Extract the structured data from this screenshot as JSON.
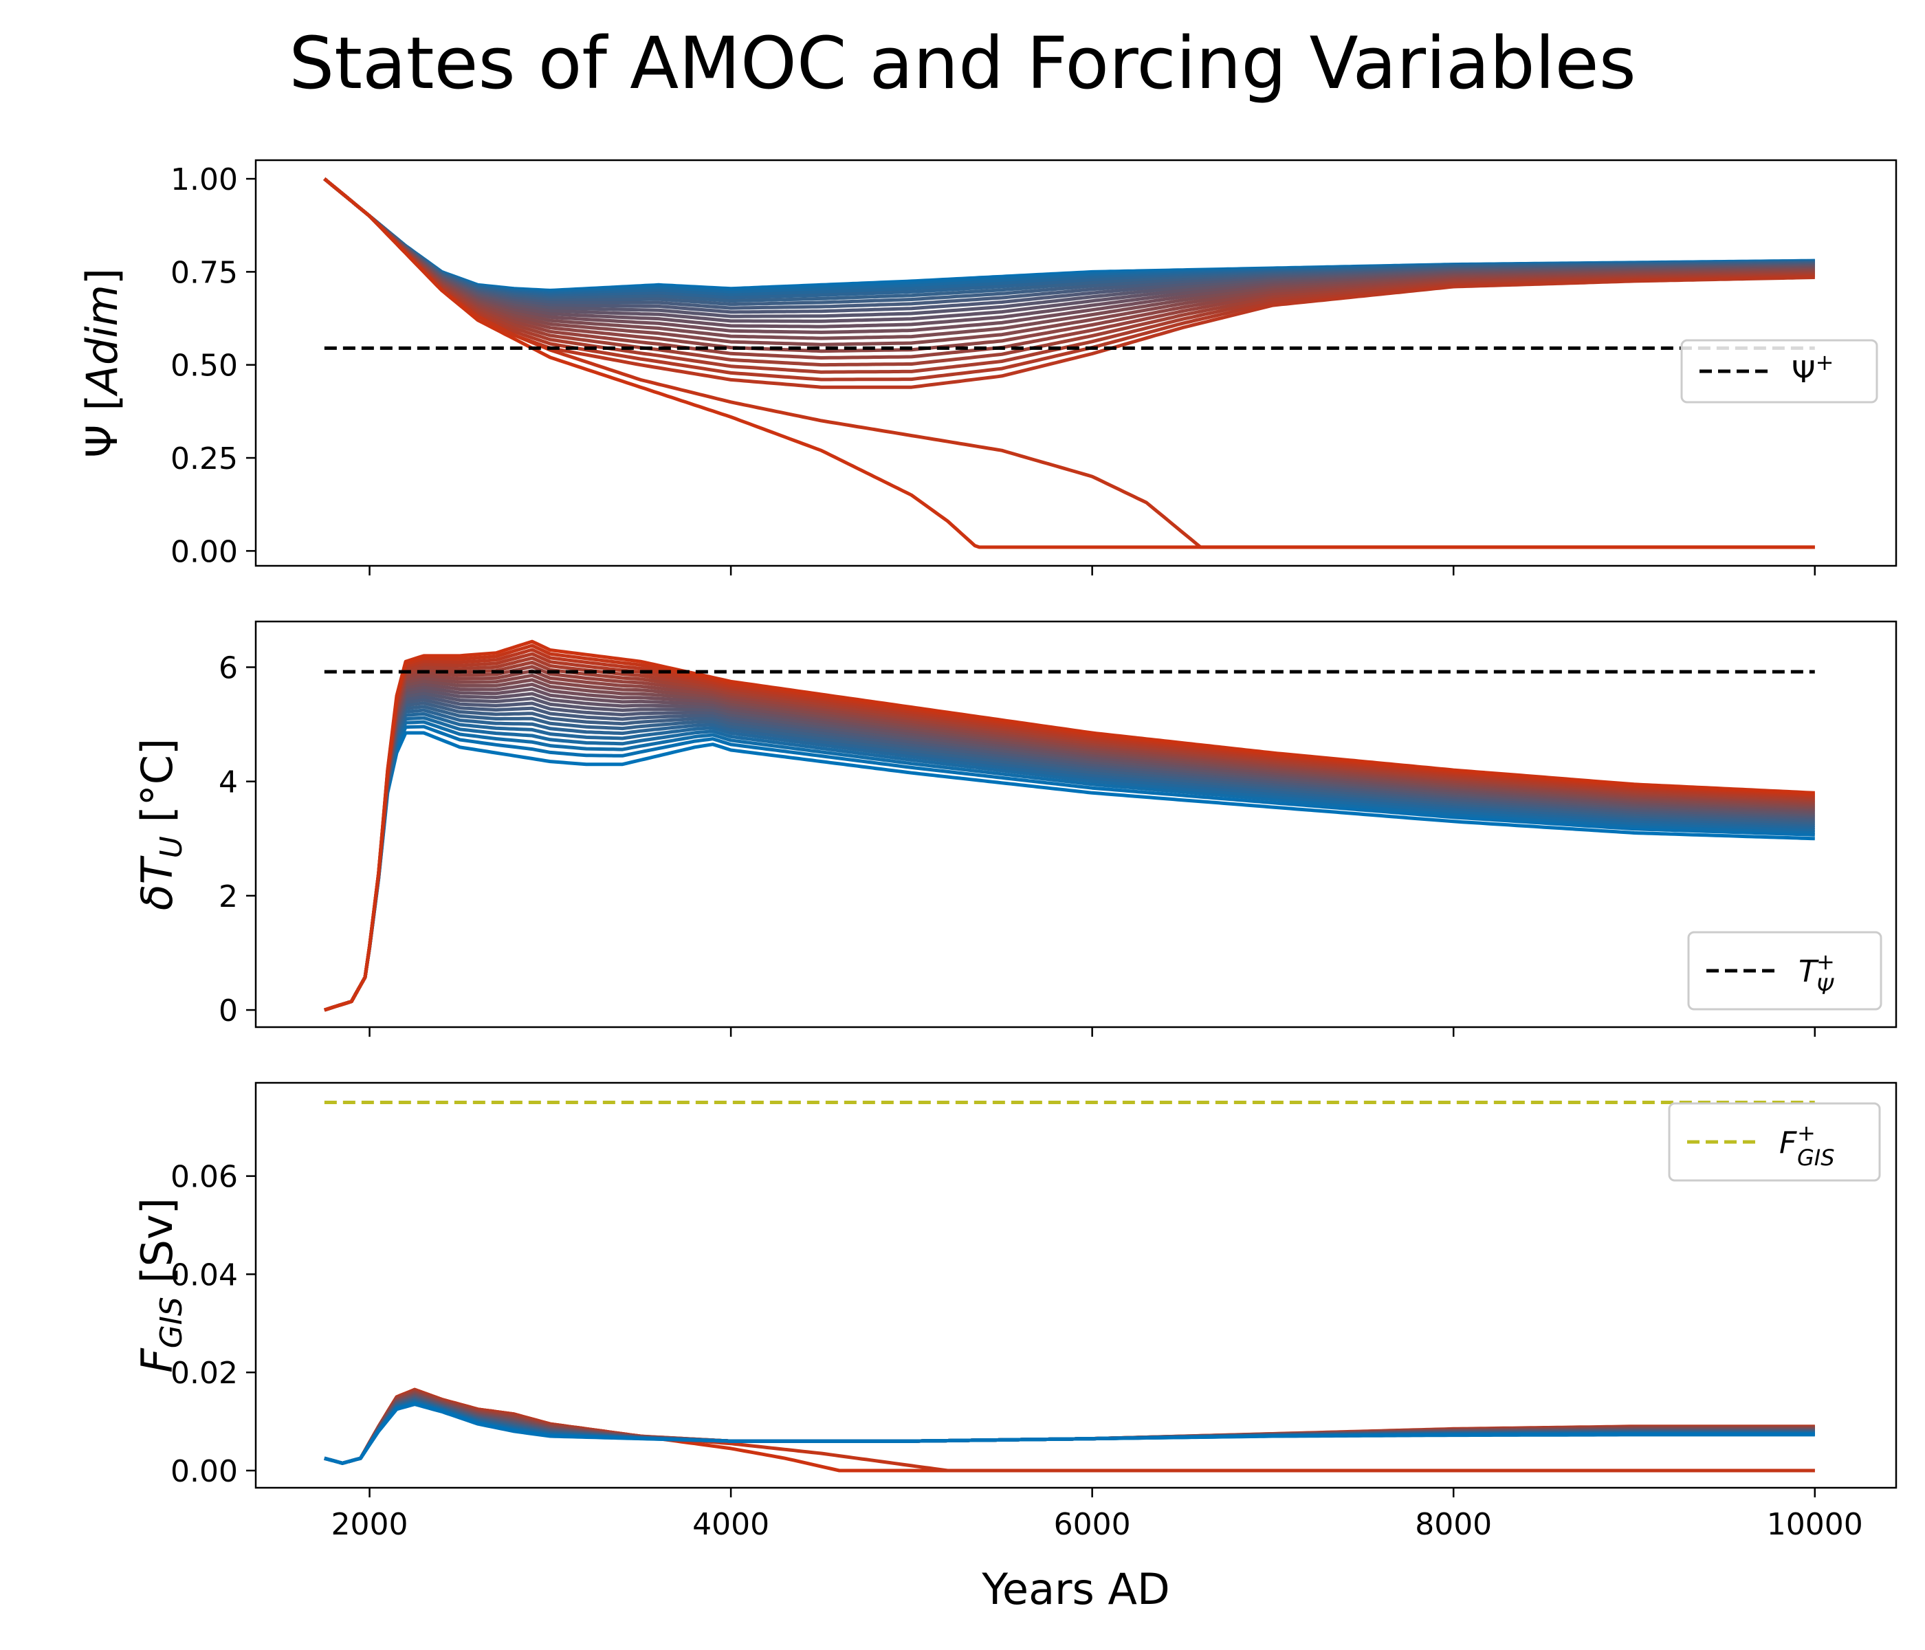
{
  "figure": {
    "title": "States of AMOC and Forcing Variables",
    "xlabel": "Years AD",
    "x_ticks": [
      "2000",
      "4000",
      "6000",
      "8000",
      "10000"
    ]
  },
  "colors": {
    "start": "#0072b8",
    "end": "#cc3311",
    "threshold_black": "#000000",
    "threshold_olive": "#bcbd22"
  },
  "chart_data": [
    {
      "type": "line",
      "id": "psi",
      "ylabel": "Ψ [Adim]",
      "ylabel_main": "Ψ [",
      "ylabel_italic": "Adim",
      "ylabel_tail": "]",
      "xlim": [
        1370,
        10450
      ],
      "ylim": [
        -0.04,
        1.05
      ],
      "y_ticks": [
        0,
        0.25,
        0.5,
        0.75,
        1.0
      ],
      "y_tick_labels": [
        "0.00",
        "0.25",
        "0.50",
        "0.75",
        "1.00"
      ],
      "threshold": {
        "value": 0.545,
        "color": "#000000",
        "legend": "Ψ⁺",
        "legend_base": "Ψ",
        "legend_sup": "+"
      },
      "legend_position": "right",
      "series_count": 24,
      "series": [
        {
          "name": "blue edge",
          "x": [
            1750,
            2000,
            2200,
            2400,
            2600,
            2800,
            3000,
            3200,
            3400,
            3600,
            3800,
            4000,
            5000,
            6000,
            7000,
            8000,
            9000,
            10000
          ],
          "y": [
            1.0,
            0.9,
            0.82,
            0.75,
            0.715,
            0.705,
            0.7,
            0.705,
            0.71,
            0.715,
            0.71,
            0.705,
            0.725,
            0.75,
            0.76,
            0.77,
            0.775,
            0.78
          ]
        },
        {
          "name": "red edge (collapse 1)",
          "x": [
            1750,
            2000,
            2200,
            2400,
            2600,
            2800,
            3000,
            3500,
            4000,
            4500,
            5000,
            5200,
            5360,
            10000
          ],
          "y": [
            1.0,
            0.9,
            0.8,
            0.7,
            0.62,
            0.57,
            0.52,
            0.44,
            0.36,
            0.27,
            0.15,
            0.08,
            0.01,
            0.01
          ]
        },
        {
          "name": "red (collapse 2)",
          "x": [
            1750,
            2000,
            2200,
            2400,
            2600,
            2800,
            3000,
            3500,
            4000,
            4500,
            5000,
            5500,
            6000,
            6300,
            6600,
            10000
          ],
          "y": [
            1.0,
            0.9,
            0.8,
            0.7,
            0.63,
            0.58,
            0.54,
            0.46,
            0.4,
            0.35,
            0.31,
            0.27,
            0.2,
            0.13,
            0.01,
            0.01
          ]
        },
        {
          "name": "red (recovering)",
          "x": [
            1750,
            2000,
            2200,
            2400,
            2600,
            2800,
            3000,
            3500,
            4000,
            4500,
            5000,
            5500,
            6000,
            6500,
            7000,
            8000,
            9000,
            10000
          ],
          "y": [
            1.0,
            0.9,
            0.8,
            0.7,
            0.63,
            0.58,
            0.545,
            0.5,
            0.46,
            0.44,
            0.44,
            0.47,
            0.53,
            0.6,
            0.66,
            0.71,
            0.725,
            0.735
          ]
        }
      ]
    },
    {
      "type": "line",
      "id": "temperature",
      "ylabel": "δT_U [°C]",
      "ylabel_main": "δT",
      "ylabel_sub": "U",
      "ylabel_tail": " [°C]",
      "xlim": [
        1370,
        10450
      ],
      "ylim": [
        -0.3,
        6.8
      ],
      "y_ticks": [
        0,
        2,
        4,
        6
      ],
      "y_tick_labels": [
        "0",
        "2",
        "4",
        "6"
      ],
      "threshold": {
        "value": 5.92,
        "color": "#000000",
        "legend": "T_Ψ⁺",
        "legend_base": "T",
        "legend_sub": "Ψ",
        "legend_sup": "+"
      },
      "legend_position": "lower right",
      "series_count": 24,
      "series": [
        {
          "name": "red edge",
          "x": [
            1750,
            1900,
            1980,
            2050,
            2100,
            2150,
            2200,
            2300,
            2500,
            2700,
            2900,
            3000,
            3500,
            4000,
            5000,
            6000,
            7000,
            8000,
            9000,
            10000
          ],
          "y": [
            0.0,
            0.15,
            0.6,
            2.4,
            4.2,
            5.5,
            6.1,
            6.2,
            6.2,
            6.25,
            6.45,
            6.3,
            6.1,
            5.75,
            5.3,
            4.85,
            4.5,
            4.2,
            3.95,
            3.8
          ]
        },
        {
          "name": "blue edge",
          "x": [
            1750,
            1900,
            1980,
            2050,
            2100,
            2150,
            2200,
            2300,
            2500,
            2800,
            3000,
            3200,
            3400,
            3600,
            3800,
            3900,
            4000,
            4500,
            5000,
            6000,
            7000,
            8000,
            9000,
            10000
          ],
          "y": [
            0.0,
            0.15,
            0.6,
            2.3,
            3.8,
            4.5,
            4.85,
            4.85,
            4.6,
            4.45,
            4.35,
            4.3,
            4.3,
            4.45,
            4.6,
            4.65,
            4.55,
            4.35,
            4.15,
            3.8,
            3.55,
            3.3,
            3.1,
            3.0
          ]
        }
      ]
    },
    {
      "type": "line",
      "id": "fgis",
      "ylabel": "F_GIS [Sv]",
      "ylabel_main": "F",
      "ylabel_sub": "GIS",
      "ylabel_tail": " [Sv]",
      "xlim": [
        1370,
        10450
      ],
      "ylim": [
        -0.0035,
        0.079
      ],
      "y_ticks": [
        0,
        0.02,
        0.04,
        0.06
      ],
      "y_tick_labels": [
        "0.00",
        "0.02",
        "0.04",
        "0.06"
      ],
      "threshold": {
        "value": 0.075,
        "color": "#bcbd22",
        "legend": "F_GIS⁺",
        "legend_base": "F",
        "legend_sub": "GIS",
        "legend_sup": "+"
      },
      "legend_position": "upper right",
      "series_count": 24,
      "series": [
        {
          "name": "red edge (collapse 1)",
          "x": [
            1750,
            1850,
            1950,
            2050,
            2150,
            2250,
            2400,
            2600,
            2800,
            3000,
            3500,
            4000,
            4300,
            4600,
            10000
          ],
          "y": [
            0.0025,
            0.0015,
            0.0025,
            0.009,
            0.015,
            0.0165,
            0.0145,
            0.0125,
            0.0115,
            0.0095,
            0.007,
            0.0045,
            0.0025,
            0.0,
            0.0
          ]
        },
        {
          "name": "red (collapse 2)",
          "x": [
            1750,
            1850,
            1950,
            2050,
            2150,
            2250,
            2400,
            2600,
            2800,
            3000,
            3500,
            4000,
            4500,
            5000,
            5200,
            10000
          ],
          "y": [
            0.0025,
            0.0015,
            0.0025,
            0.009,
            0.015,
            0.0165,
            0.0145,
            0.0125,
            0.0115,
            0.0095,
            0.007,
            0.0055,
            0.0035,
            0.001,
            0.0,
            0.0
          ]
        },
        {
          "name": "red (recovering)",
          "x": [
            1750,
            1850,
            1950,
            2050,
            2150,
            2250,
            2400,
            2600,
            2800,
            3000,
            3500,
            4000,
            5000,
            6000,
            7000,
            8000,
            9000,
            10000
          ],
          "y": [
            0.0025,
            0.0015,
            0.0025,
            0.009,
            0.015,
            0.0165,
            0.0145,
            0.0125,
            0.0115,
            0.0095,
            0.007,
            0.006,
            0.006,
            0.0065,
            0.0075,
            0.0085,
            0.009,
            0.009
          ]
        },
        {
          "name": "blue edge",
          "x": [
            1750,
            1850,
            1950,
            2050,
            2150,
            2250,
            2400,
            2600,
            2800,
            3000,
            3500,
            4000,
            5000,
            6000,
            7000,
            8000,
            9000,
            10000
          ],
          "y": [
            0.0025,
            0.0015,
            0.0025,
            0.008,
            0.0125,
            0.0135,
            0.012,
            0.0095,
            0.008,
            0.007,
            0.0065,
            0.006,
            0.006,
            0.0065,
            0.007,
            0.0072,
            0.0073,
            0.0073
          ]
        }
      ]
    }
  ]
}
